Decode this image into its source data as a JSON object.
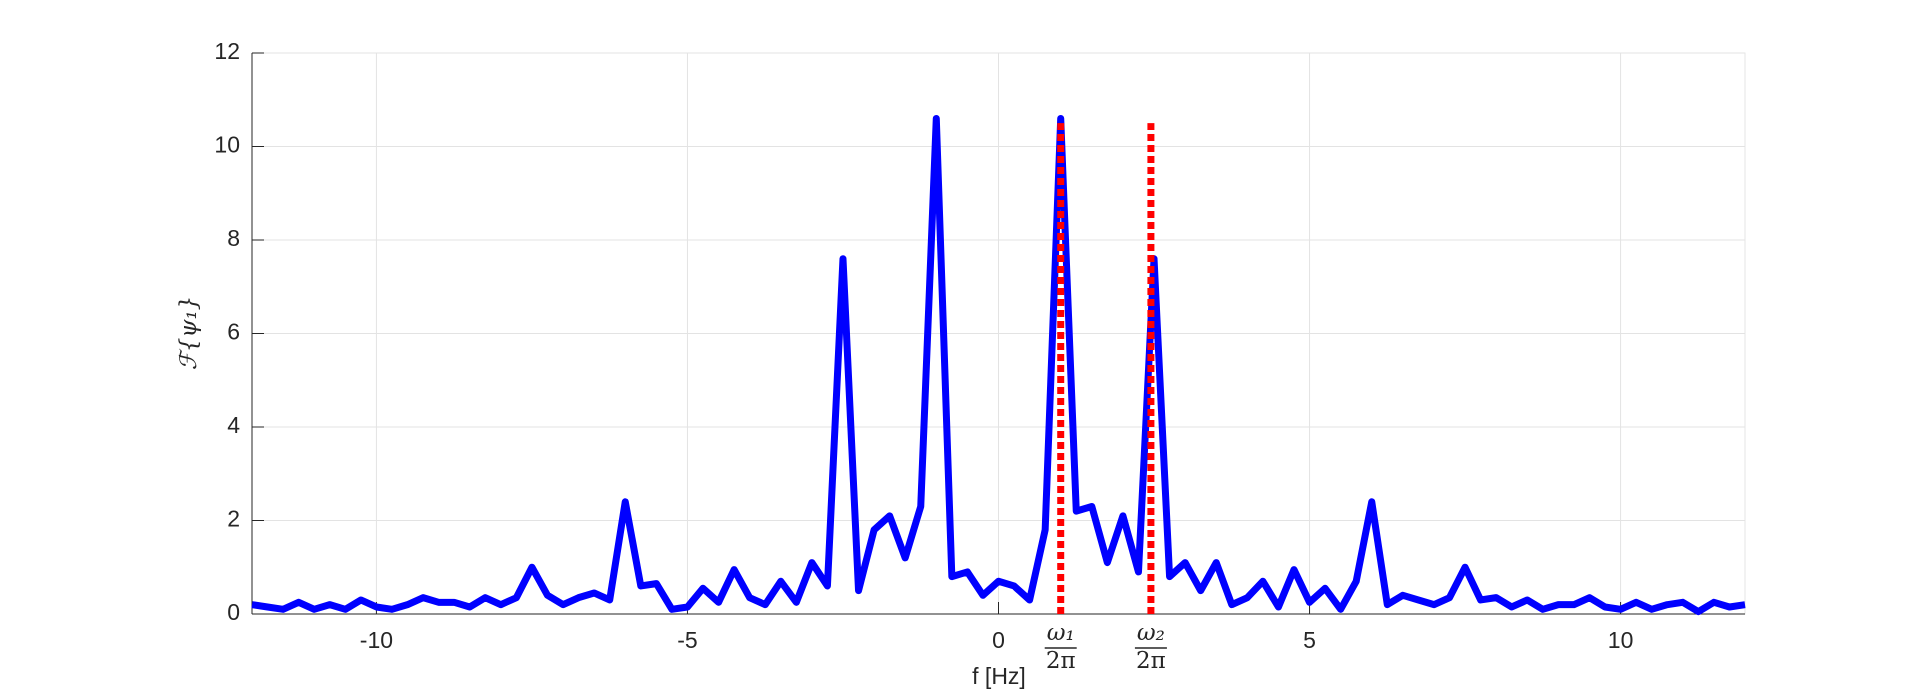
{
  "chart_data": {
    "type": "line",
    "xlabel": "f [Hz]",
    "ylabel": "ℱ{ψ₁}",
    "x": [
      -12,
      -11.75,
      -11.5,
      -11.25,
      -11,
      -10.75,
      -10.5,
      -10.25,
      -10,
      -9.75,
      -9.5,
      -9.25,
      -9,
      -8.75,
      -8.5,
      -8.25,
      -8,
      -7.75,
      -7.5,
      -7.25,
      -7,
      -6.75,
      -6.5,
      -6.25,
      -6,
      -5.75,
      -5.5,
      -5.25,
      -5,
      -4.75,
      -4.5,
      -4.25,
      -4,
      -3.75,
      -3.5,
      -3.25,
      -3,
      -2.75,
      -2.5,
      -2.25,
      -2,
      -1.75,
      -1.5,
      -1.25,
      -1,
      -0.75,
      -0.5,
      -0.25,
      0,
      0.25,
      0.5,
      0.75,
      1,
      1.25,
      1.5,
      1.75,
      2,
      2.25,
      2.5,
      2.75,
      3,
      3.25,
      3.5,
      3.75,
      4,
      4.25,
      4.5,
      4.75,
      5,
      5.25,
      5.5,
      5.75,
      6,
      6.25,
      6.5,
      6.75,
      7,
      7.25,
      7.5,
      7.75,
      8,
      8.25,
      8.5,
      8.75,
      9,
      9.25,
      9.5,
      9.75,
      10,
      10.25,
      10.5,
      10.75,
      11,
      11.25,
      11.5,
      11.75,
      12
    ],
    "series": [
      {
        "color": "#0000ff",
        "values": [
          0.2,
          0.15,
          0.1,
          0.25,
          0.1,
          0.2,
          0.1,
          0.3,
          0.15,
          0.1,
          0.2,
          0.35,
          0.25,
          0.25,
          0.15,
          0.35,
          0.2,
          0.35,
          1.0,
          0.4,
          0.2,
          0.35,
          0.45,
          0.3,
          2.4,
          0.6,
          0.65,
          0.1,
          0.15,
          0.55,
          0.25,
          0.95,
          0.35,
          0.2,
          0.7,
          0.25,
          1.1,
          0.6,
          7.6,
          0.5,
          1.8,
          2.1,
          1.2,
          2.3,
          10.6,
          0.8,
          0.9,
          0.4,
          0.7,
          0.6,
          0.3,
          1.8,
          10.6,
          2.2,
          2.3,
          1.1,
          2.1,
          0.9,
          7.6,
          0.8,
          1.1,
          0.5,
          1.1,
          0.2,
          0.35,
          0.7,
          0.15,
          0.95,
          0.25,
          0.55,
          0.1,
          0.7,
          2.4,
          0.2,
          0.4,
          0.3,
          0.2,
          0.35,
          1.0,
          0.3,
          0.35,
          0.15,
          0.3,
          0.1,
          0.2,
          0.2,
          0.35,
          0.15,
          0.1,
          0.25,
          0.1,
          0.2,
          0.25,
          0.05,
          0.25,
          0.15,
          0.2
        ]
      }
    ],
    "markers": [
      {
        "x": 1,
        "height": 10.5,
        "color": "#ff0000",
        "numerator": "ω₁",
        "denominator": "2π"
      },
      {
        "x": 2.45,
        "height": 10.5,
        "color": "#ff0000",
        "numerator": "ω₂",
        "denominator": "2π"
      }
    ],
    "xlim": [
      -12,
      12
    ],
    "ylim": [
      0,
      12
    ],
    "xticks": [
      -10,
      -5,
      0,
      5,
      10
    ],
    "yticks": [
      0,
      2,
      4,
      6,
      8,
      10,
      12
    ],
    "grid": true
  }
}
